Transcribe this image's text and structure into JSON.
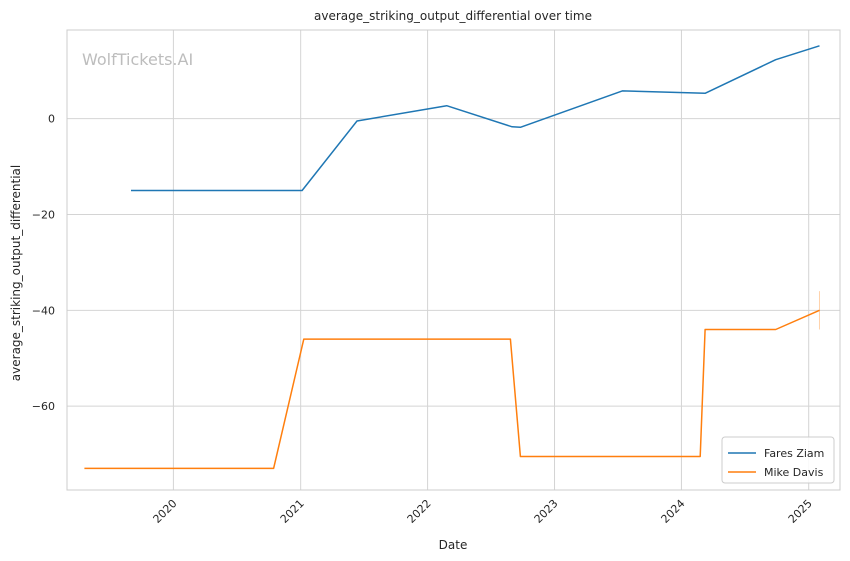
{
  "chart_data": {
    "type": "line",
    "title": "average_striking_output_differential over time",
    "xlabel": "Date",
    "ylabel": "average_striking_output_differential",
    "watermark": "WolfTickets.AI",
    "xlim": [
      "2019-03-01",
      "2025-04-01"
    ],
    "ylim": [
      -77.5,
      18.5
    ],
    "x_ticks": [
      "2020",
      "2021",
      "2022",
      "2023",
      "2024",
      "2025"
    ],
    "y_ticks": [
      0,
      -20,
      -40,
      -60
    ],
    "y_tick_labels": [
      "0",
      "−20",
      "−40",
      "−60"
    ],
    "grid": true,
    "legend_position": "lower-right",
    "series": [
      {
        "name": "Fares Ziam",
        "color": "#1f77b4",
        "points": [
          {
            "x": "2019-09-01",
            "y": -15
          },
          {
            "x": "2021-01-05",
            "y": -15
          },
          {
            "x": "2021-06-12",
            "y": -0.5
          },
          {
            "x": "2022-02-25",
            "y": 2.7
          },
          {
            "x": "2022-09-01",
            "y": -1.7
          },
          {
            "x": "2022-09-25",
            "y": -1.8
          },
          {
            "x": "2023-07-15",
            "y": 5.8
          },
          {
            "x": "2024-03-09",
            "y": 5.3
          },
          {
            "x": "2024-09-28",
            "y": 12.3
          },
          {
            "x": "2025-02-01",
            "y": 15.2
          }
        ]
      },
      {
        "name": "Mike Davis",
        "color": "#ff7f0e",
        "points": [
          {
            "x": "2019-04-20",
            "y": -73
          },
          {
            "x": "2020-10-15",
            "y": -73
          },
          {
            "x": "2021-01-10",
            "y": -46
          },
          {
            "x": "2022-08-27",
            "y": -46
          },
          {
            "x": "2022-09-25",
            "y": -70.5
          },
          {
            "x": "2024-02-24",
            "y": -70.5
          },
          {
            "x": "2024-03-09",
            "y": -44
          },
          {
            "x": "2024-09-28",
            "y": -44
          },
          {
            "x": "2025-02-01",
            "y": -40
          }
        ],
        "error_bar": {
          "x": "2025-02-01",
          "y_low": -44,
          "y_high": -36
        }
      }
    ]
  }
}
